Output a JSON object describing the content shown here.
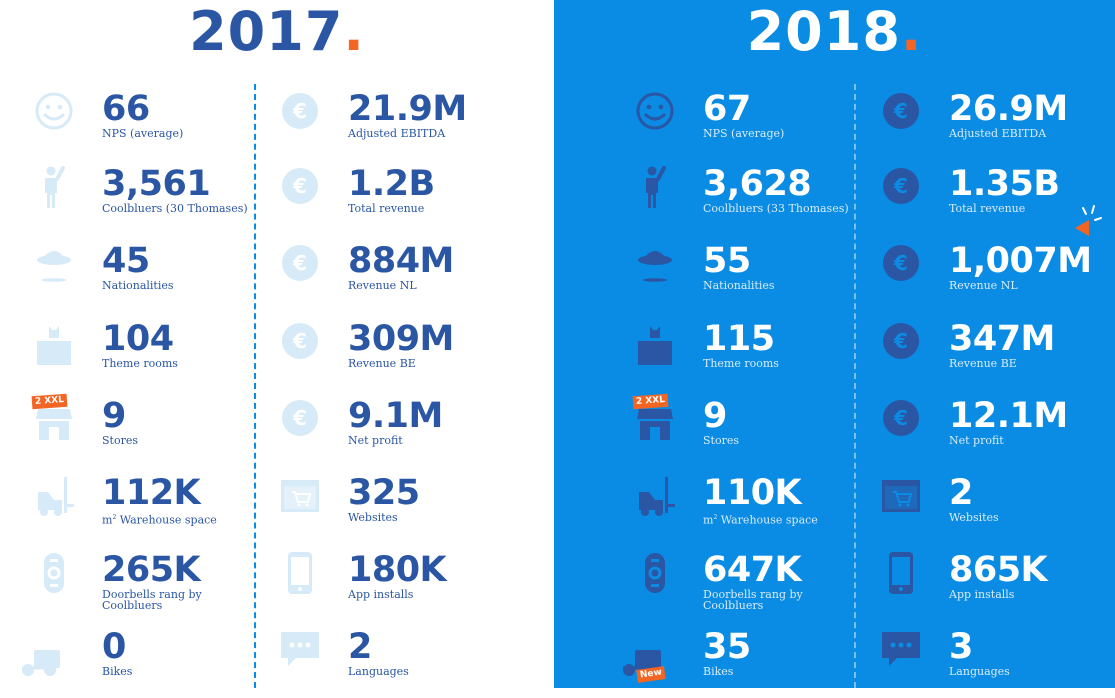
{
  "colors": {
    "navy": "#2a56a3",
    "blue": "#0a8be4",
    "light_icon": "#d6eaf8",
    "orange": "#f26522",
    "white": "#ffffff"
  },
  "y2017": {
    "title": "2017",
    "left": [
      {
        "value": "66",
        "label": "NPS (average)",
        "icon": "smiley-icon"
      },
      {
        "value": "3,561",
        "label": "Coolbluers (30 Thomases)",
        "icon": "person-waving-icon"
      },
      {
        "value": "45",
        "label": "Nationalities",
        "icon": "ufo-icon"
      },
      {
        "value": "104",
        "label": "Theme rooms",
        "icon": "theme-room-icon"
      },
      {
        "value": "9",
        "label": "Stores",
        "icon": "store-icon",
        "badge": "2 XXL"
      },
      {
        "value": "112K",
        "label_pre": "m",
        "label_sup": "2",
        "label": " Warehouse space",
        "icon": "forklift-icon"
      },
      {
        "value": "265K",
        "label": "Doorbells rang by",
        "label2": "Coolbluers",
        "icon": "doorbell-icon"
      },
      {
        "value": "0",
        "label": "Bikes",
        "icon": "bike-icon"
      }
    ],
    "right": [
      {
        "value": "21.9M",
        "label": "Adjusted EBITDA",
        "icon": "euro-icon"
      },
      {
        "value": "1.2B",
        "label": "Total revenue",
        "icon": "euro-icon"
      },
      {
        "value": "884M",
        "label": "Revenue NL",
        "icon": "euro-icon"
      },
      {
        "value": "309M",
        "label": "Revenue BE",
        "icon": "euro-icon"
      },
      {
        "value": "9.1M",
        "label": "Net profit",
        "icon": "euro-icon"
      },
      {
        "value": "325",
        "label": "Websites",
        "icon": "website-cart-icon"
      },
      {
        "value": "180K",
        "label": "App installs",
        "icon": "phone-icon"
      },
      {
        "value": "2",
        "label": "Languages",
        "icon": "speech-bubble-icon"
      }
    ]
  },
  "y2018": {
    "title": "2018",
    "left": [
      {
        "value": "67",
        "label": "NPS (average)",
        "icon": "smiley-icon"
      },
      {
        "value": "3,628",
        "label": "Coolbluers (33 Thomases)",
        "icon": "person-waving-icon"
      },
      {
        "value": "55",
        "label": "Nationalities",
        "icon": "ufo-icon"
      },
      {
        "value": "115",
        "label": "Theme  rooms",
        "icon": "theme-room-icon"
      },
      {
        "value": "9",
        "label": "Stores",
        "icon": "store-icon",
        "badge": "2 XXL"
      },
      {
        "value": "110K",
        "label_pre": "m",
        "label_sup": "2",
        "label": " Warehouse space",
        "icon": "forklift-icon"
      },
      {
        "value": "647K",
        "label": "Doorbells rang by",
        "label2": "Coolbluers",
        "icon": "doorbell-icon"
      },
      {
        "value": "35",
        "label": "Bikes",
        "icon": "bike-icon",
        "badge": "New"
      }
    ],
    "right": [
      {
        "value": "26.9M",
        "label": "Adjusted EBITDA",
        "icon": "euro-icon"
      },
      {
        "value": "1.35B",
        "label": "Total revenue",
        "icon": "euro-icon"
      },
      {
        "value": "1,007M",
        "label": "Revenue NL",
        "icon": "euro-icon",
        "highlight": "sparkle-flag-icon"
      },
      {
        "value": "347M",
        "label": "Revenue BE",
        "icon": "euro-icon"
      },
      {
        "value": "12.1M",
        "label": "Net profit",
        "icon": "euro-icon"
      },
      {
        "value": "2",
        "label": "Websites",
        "icon": "website-cart-icon"
      },
      {
        "value": "865K",
        "label": "App installs",
        "icon": "phone-icon"
      },
      {
        "value": "3",
        "label": "Languages",
        "icon": "speech-bubble-icon"
      }
    ]
  }
}
